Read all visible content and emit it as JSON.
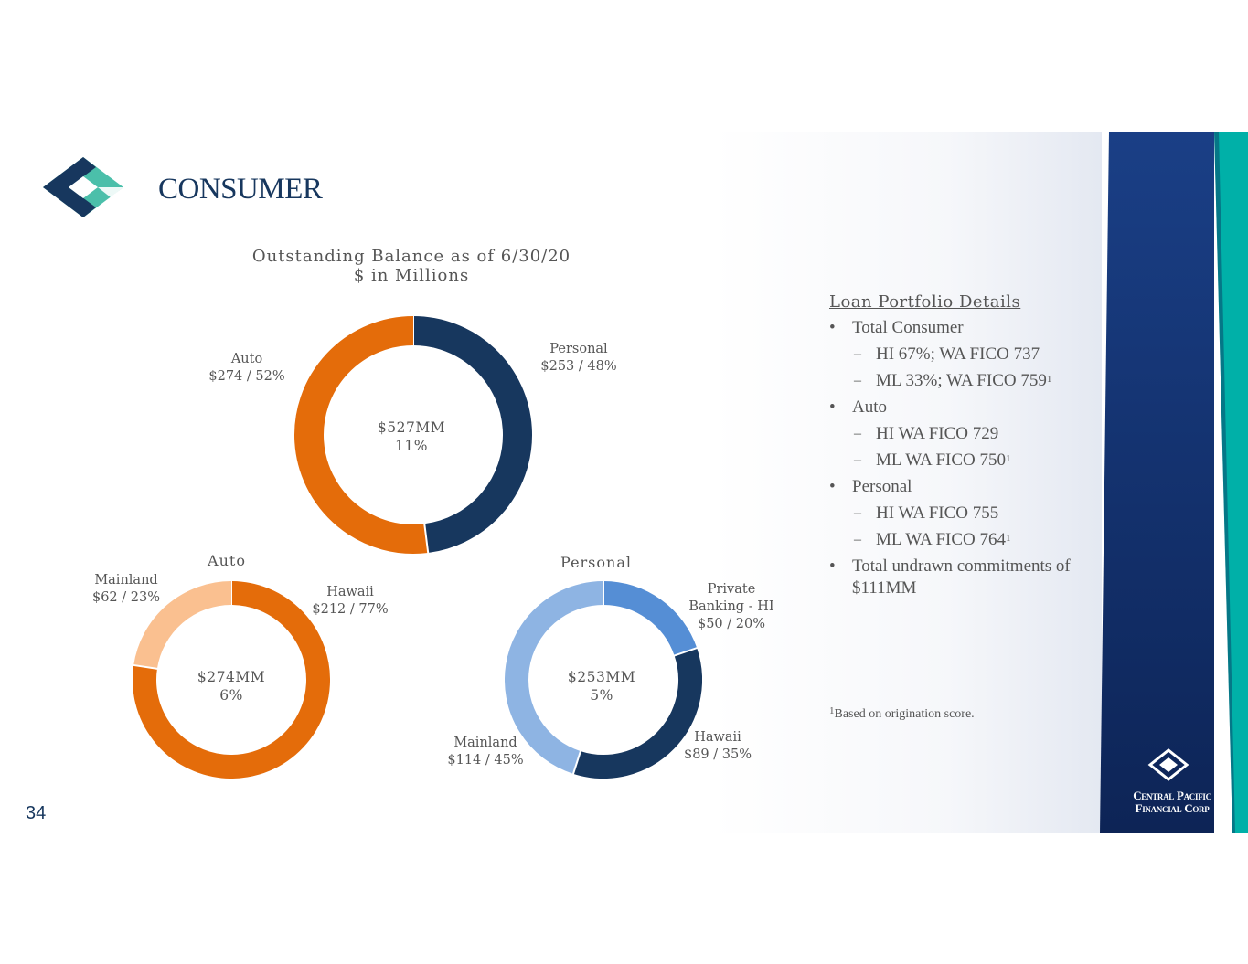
{
  "slide": {
    "title": "CONSUMER",
    "page_number": "34",
    "brand_line1": "Central Pacific",
    "brand_line2": "Financial Corp"
  },
  "colors": {
    "navy": "#17375e",
    "orange": "#e46c0a",
    "peach": "#fac090",
    "blue": "#558ed5",
    "light_blue": "#8eb4e3",
    "teal": "#00b0a8",
    "logo_teal": "#4bbfaa"
  },
  "chart_data": [
    {
      "type": "pie",
      "donut": true,
      "title": "Outstanding Balance as of 6/30/20",
      "subtitle": "$ in Millions",
      "center_line1": "$527MM",
      "center_line2": "11%",
      "categories": [
        "Personal",
        "Auto"
      ],
      "values": [
        253,
        274
      ],
      "percents": [
        48,
        52
      ],
      "labels": [
        {
          "name": "Personal",
          "value": "$253 / 48%"
        },
        {
          "name": "Auto",
          "value": "$274 / 52%"
        }
      ],
      "colors": [
        "#17375e",
        "#e46c0a"
      ]
    },
    {
      "type": "pie",
      "donut": true,
      "title": "Auto",
      "center_line1": "$274MM",
      "center_line2": "6%",
      "categories": [
        "Hawaii",
        "Mainland"
      ],
      "values": [
        212,
        62
      ],
      "percents": [
        77,
        23
      ],
      "labels": [
        {
          "name": "Hawaii",
          "value": "$212 / 77%"
        },
        {
          "name": "Mainland",
          "value": "$62 / 23%"
        }
      ],
      "colors": [
        "#e46c0a",
        "#fac090"
      ]
    },
    {
      "type": "pie",
      "donut": true,
      "title": "Personal",
      "center_line1": "$253MM",
      "center_line2": "5%",
      "categories": [
        "Private Banking - HI",
        "Hawaii",
        "Mainland"
      ],
      "values": [
        50,
        89,
        114
      ],
      "percents": [
        20,
        35,
        45
      ],
      "labels": [
        {
          "name1": "Private",
          "name2": "Banking -  HI",
          "value": "$50 / 20%"
        },
        {
          "name": "Hawaii",
          "value": "$89 / 35%"
        },
        {
          "name": "Mainland",
          "value": "$114 / 45%"
        }
      ],
      "colors": [
        "#558ed5",
        "#17375e",
        "#8eb4e3"
      ]
    }
  ],
  "details": {
    "header": "Loan Portfolio Details",
    "total_consumer": "Total Consumer",
    "hi_total": "HI 67%; WA FICO 737",
    "ml_total": "ML 33%; WA FICO 759",
    "auto": "Auto",
    "auto_hi": "HI WA FICO 729",
    "auto_ml": "ML WA FICO 750",
    "personal": "Personal",
    "personal_hi": "HI WA FICO 755",
    "personal_ml": "ML WA FICO 764",
    "undrawn": "Total undrawn commitments of $111MM",
    "sup": "1",
    "footnote": "Based on origination score."
  }
}
